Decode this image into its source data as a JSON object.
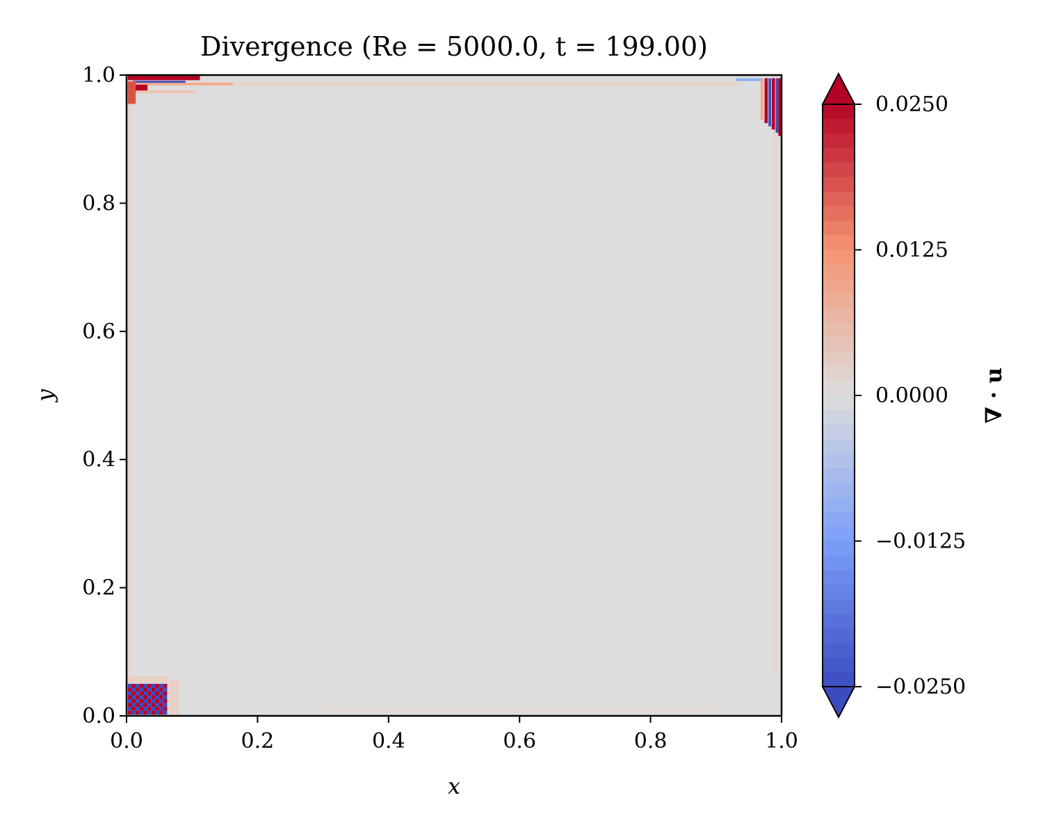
{
  "chart_data": {
    "type": "heatmap",
    "title": "Divergence (Re = 5000.0, t = 199.00)",
    "xlabel": "x",
    "ylabel": "y",
    "xlim": [
      0.0,
      1.0
    ],
    "ylim": [
      0.0,
      1.0
    ],
    "x_ticks": [
      0.0,
      0.2,
      0.4,
      0.6,
      0.8,
      1.0
    ],
    "y_ticks": [
      0.0,
      0.2,
      0.4,
      0.6,
      0.8,
      1.0
    ],
    "x_tick_labels": [
      "0.0",
      "0.2",
      "0.4",
      "0.6",
      "0.8",
      "1.0"
    ],
    "y_tick_labels": [
      "0.0",
      "0.2",
      "0.4",
      "0.6",
      "0.8",
      "1.0"
    ],
    "colormap": "coolwarm",
    "grid": false,
    "colorbar": {
      "label": "∇ · u",
      "range": [
        -0.025,
        0.025
      ],
      "extend": "both",
      "ticks": [
        0.025,
        0.0125,
        0.0,
        -0.0125,
        -0.025
      ],
      "tick_labels": [
        "0.0250",
        "0.0125",
        "0.0000",
        "−0.0125",
        "−0.0250"
      ]
    },
    "background_value": 0.0,
    "features": [
      {
        "region": "top-left corner",
        "x": [
          0.0,
          0.12
        ],
        "y": [
          0.96,
          1.0
        ],
        "values": "positive band along lid with negative streak"
      },
      {
        "region": "top-right corner",
        "x": [
          0.96,
          1.0
        ],
        "y": [
          0.9,
          1.0
        ],
        "values": "alternating positive/negative streaks"
      },
      {
        "region": "bottom-left corner",
        "x": [
          0.0,
          0.06
        ],
        "y": [
          0.0,
          0.05
        ],
        "values": "checkerboard of ±0.025"
      }
    ],
    "colors": {
      "positive": "#b40426",
      "negative": "#3b4cc0",
      "neutral": "#dddddd"
    }
  }
}
